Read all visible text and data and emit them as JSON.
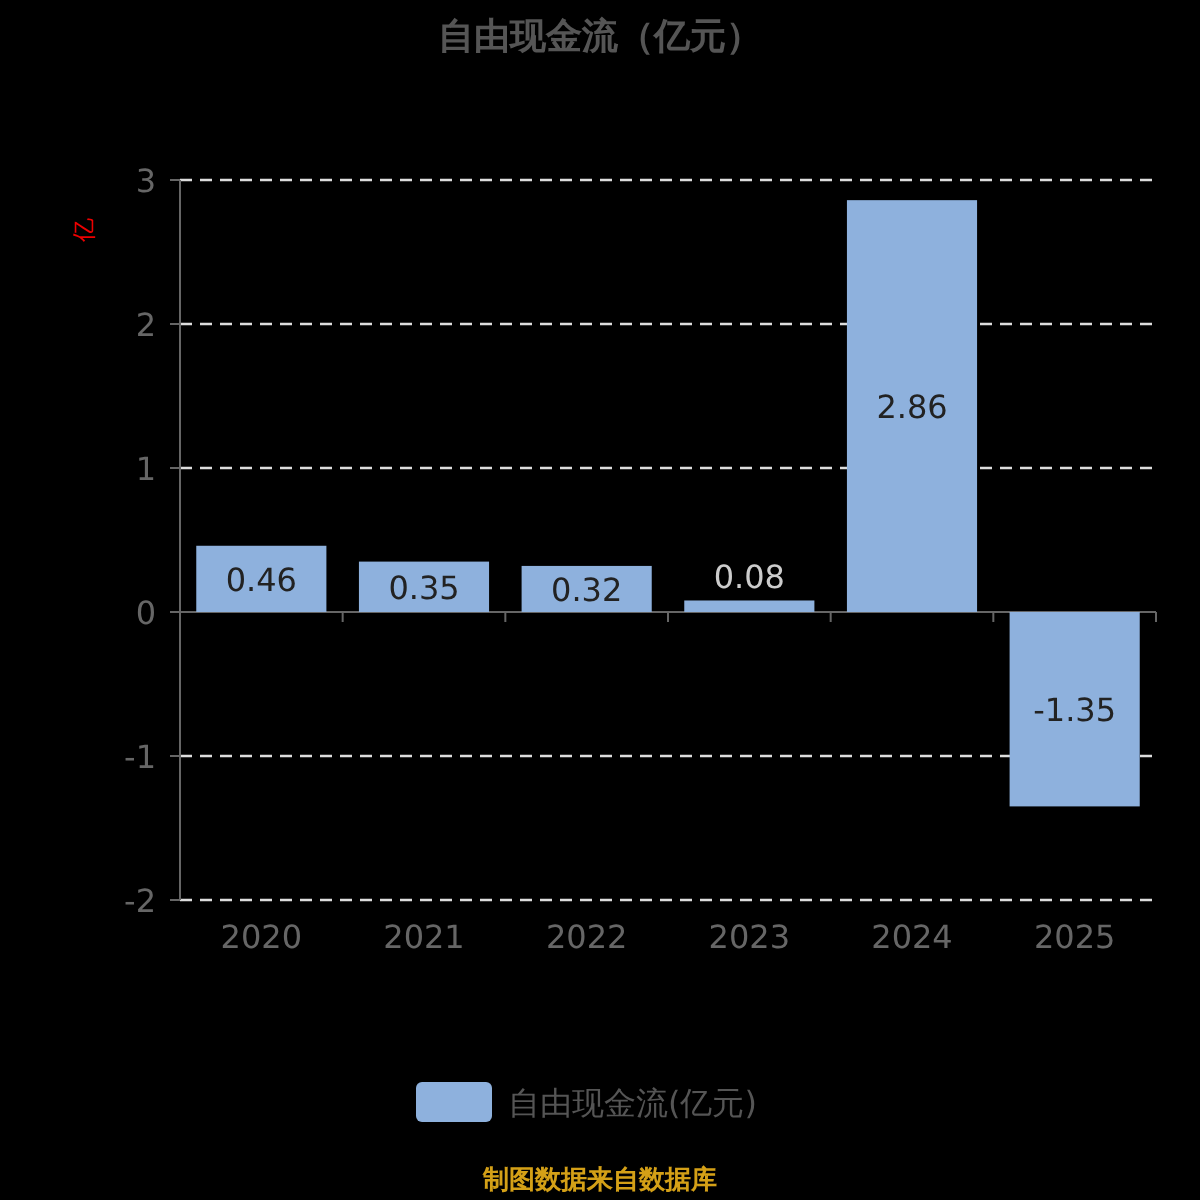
{
  "chart_data": {
    "type": "bar",
    "title": "自由现金流（亿元）",
    "ylabel": "亿",
    "categories": [
      "2020",
      "2021",
      "2022",
      "2023",
      "2024",
      "2025"
    ],
    "series": [
      {
        "name": "自由现金流(亿元)",
        "color": "#8eb1dd",
        "values": [
          0.46,
          0.35,
          0.32,
          0.08,
          2.86,
          -1.35
        ]
      }
    ],
    "ylim": [
      -2,
      3
    ],
    "yticks": [
      -2,
      -1,
      0,
      1,
      2,
      3
    ],
    "grid": "y",
    "legend": "bottom",
    "data_labels": true,
    "annotations": [
      "制图数据来自数据库"
    ]
  }
}
